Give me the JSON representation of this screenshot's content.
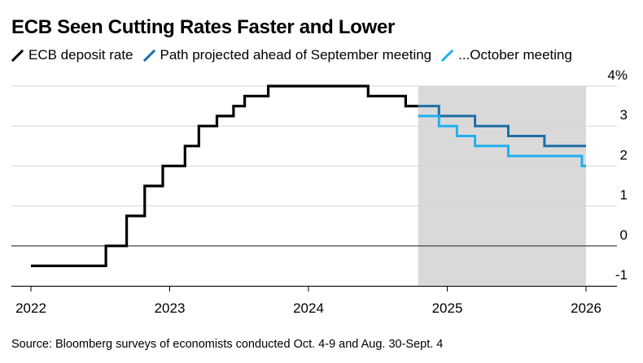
{
  "title": "ECB Seen Cutting Rates Faster and Lower",
  "source": "Source: Bloomberg surveys of economists conducted Oct. 4-9 and Aug. 30-Sept. 4",
  "colors": {
    "deposit": "#000000",
    "september": "#1a6fa6",
    "october": "#1eb0f0",
    "shade": "#d9d9d9",
    "grid": "#d5d5d5",
    "zero": "#555555"
  },
  "chart_data": {
    "type": "line",
    "xlim": [
      2022.0,
      2026.0
    ],
    "ylim": [
      -1,
      4
    ],
    "y_ticks": [
      {
        "value": 4,
        "label": "4%"
      },
      {
        "value": 3,
        "label": "3"
      },
      {
        "value": 2,
        "label": "2"
      },
      {
        "value": 1,
        "label": "1"
      },
      {
        "value": 0,
        "label": "0"
      },
      {
        "value": -1,
        "label": "-1"
      }
    ],
    "x_ticks": [
      {
        "value": 2022,
        "label": "2022"
      },
      {
        "value": 2023,
        "label": "2023"
      },
      {
        "value": 2024,
        "label": "2024"
      },
      {
        "value": 2025,
        "label": "2025"
      },
      {
        "value": 2026,
        "label": "2026"
      }
    ],
    "shaded_range": [
      2024.79,
      2026.0
    ],
    "grid": true,
    "legend_position": "top",
    "series": [
      {
        "name": "ECB deposit rate",
        "color_key": "deposit",
        "step": true,
        "points": [
          [
            2022.0,
            -0.5
          ],
          [
            2022.54,
            0.0
          ],
          [
            2022.69,
            0.75
          ],
          [
            2022.82,
            1.5
          ],
          [
            2022.95,
            2.0
          ],
          [
            2023.11,
            2.5
          ],
          [
            2023.21,
            3.0
          ],
          [
            2023.34,
            3.25
          ],
          [
            2023.46,
            3.5
          ],
          [
            2023.54,
            3.75
          ],
          [
            2023.71,
            4.0
          ],
          [
            2024.43,
            3.75
          ],
          [
            2024.7,
            3.5
          ],
          [
            2024.79,
            3.5
          ]
        ]
      },
      {
        "name": "Path projected ahead of September meeting",
        "color_key": "september",
        "step": true,
        "points": [
          [
            2024.79,
            3.5
          ],
          [
            2024.94,
            3.25
          ],
          [
            2025.2,
            3.0
          ],
          [
            2025.44,
            2.75
          ],
          [
            2025.7,
            2.5
          ],
          [
            2026.0,
            2.5
          ]
        ]
      },
      {
        "name": "...October meeting",
        "color_key": "october",
        "step": true,
        "points": [
          [
            2024.79,
            3.25
          ],
          [
            2024.94,
            3.0
          ],
          [
            2025.07,
            2.75
          ],
          [
            2025.2,
            2.5
          ],
          [
            2025.44,
            2.25
          ],
          [
            2025.97,
            2.0
          ],
          [
            2026.0,
            2.0
          ]
        ]
      }
    ]
  }
}
